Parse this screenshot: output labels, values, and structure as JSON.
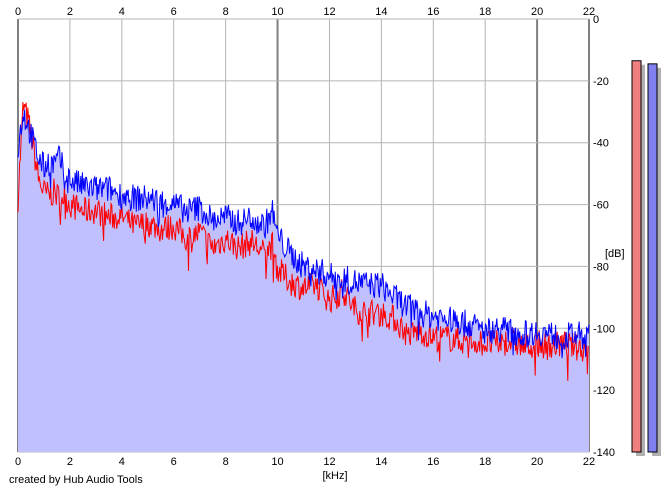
{
  "credit": "created by Hub Audio Tools",
  "colors": {
    "background": "#ffffff",
    "fill": "#c0c0ff",
    "grid_minor": "#b4b4b4",
    "grid_major": "#808080",
    "left_channel": "#ff0000",
    "right_channel": "#0000ff",
    "meter_left": "#f08080",
    "meter_right": "#8080f0",
    "meter_shadow": "#b0b0b0"
  },
  "chart_data": {
    "type": "line",
    "title": "",
    "xlabel": "[kHz]",
    "ylabel": "[dB]",
    "xlim": [
      0,
      22
    ],
    "ylim": [
      -140,
      0
    ],
    "xticks": [
      "0",
      "2",
      "4",
      "6",
      "8",
      "10",
      "12",
      "14",
      "16",
      "18",
      "20",
      "22"
    ],
    "yticks": [
      "0",
      "-20",
      "-40",
      "-60",
      "-80",
      "-100",
      "-120",
      "-140"
    ],
    "grid": true,
    "x": [
      0,
      0.2,
      0.4,
      0.6,
      0.8,
      1,
      1.2,
      1.4,
      1.6,
      1.8,
      2,
      2.5,
      3,
      3.5,
      4,
      4.5,
      5,
      5.5,
      6,
      6.5,
      7,
      7.5,
      8,
      8.5,
      9,
      9.5,
      9.8,
      10,
      10.5,
      11,
      11.5,
      12,
      12.5,
      13,
      13.5,
      14,
      14.5,
      15,
      15.5,
      16,
      16.5,
      17,
      17.5,
      18,
      18.5,
      19,
      19.5,
      20,
      20.5,
      21,
      21.5,
      22
    ],
    "series": [
      {
        "values": [
          -58,
          -28,
          -33,
          -42,
          -52,
          -56,
          -57,
          -56,
          -58,
          -57,
          -60,
          -62,
          -62,
          -64,
          -64,
          -67,
          -66,
          -68,
          -67,
          -71,
          -69,
          -74,
          -71,
          -74,
          -72,
          -76,
          -73,
          -81,
          -85,
          -87,
          -86,
          -91,
          -88,
          -94,
          -95,
          -95,
          -97,
          -102,
          -101,
          -103,
          -103,
          -104,
          -104,
          -105,
          -105,
          -104,
          -106,
          -105,
          -106,
          -105,
          -106,
          -107
        ]
      },
      {
        "values": [
          -42,
          -30,
          -35,
          -40,
          -45,
          -48,
          -46,
          -47,
          -45,
          -50,
          -52,
          -54,
          -55,
          -55,
          -57,
          -58,
          -58,
          -59,
          -60,
          -62,
          -61,
          -65,
          -64,
          -66,
          -64,
          -67,
          -62,
          -70,
          -76,
          -80,
          -81,
          -83,
          -84,
          -85,
          -86,
          -86,
          -90,
          -93,
          -95,
          -96,
          -97,
          -98,
          -99,
          -101,
          -100,
          -101,
          -102,
          -101,
          -102,
          -103,
          -102,
          -103
        ]
      }
    ],
    "levels": [
      -13.5,
      -14.5
    ]
  }
}
